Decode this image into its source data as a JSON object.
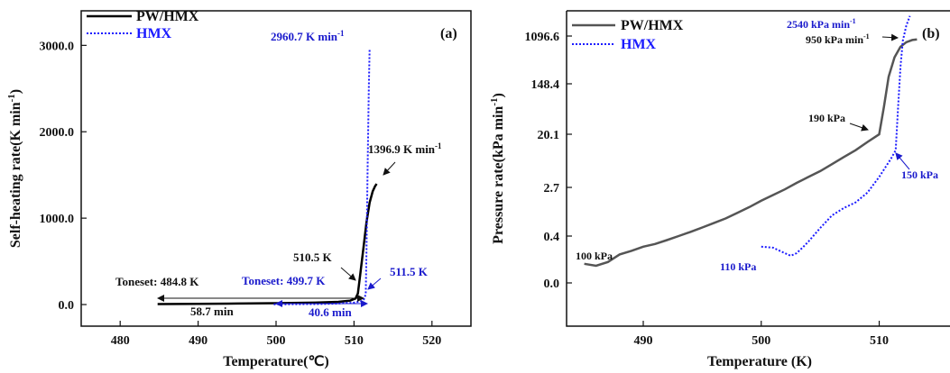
{
  "colors": {
    "pw_hmx": "#555555",
    "pw_hmx_a": "#000000",
    "hmx": "#1a1aff",
    "ann_black": "#111111",
    "ann_blue": "#1a1acc"
  },
  "chart_data": [
    {
      "panel_label": "(a)",
      "type": "line",
      "xlabel": "Temperature(℃)",
      "ylabel": "Self-heating rate(K min",
      "ylabel_sup": "-1",
      "ylabel_close": ")",
      "xlim": [
        475,
        525
      ],
      "ylim": [
        -250,
        3400
      ],
      "xticks": [
        480,
        490,
        500,
        510,
        520
      ],
      "yticks": [
        0,
        1000,
        2000,
        3000
      ],
      "ytick_labels": [
        "0.0",
        "1000.0",
        "2000.0",
        "3000.0"
      ],
      "legend": [
        "PW/HMX",
        "HMX"
      ],
      "series": [
        {
          "name": "PW/HMX",
          "style": "solid",
          "x": [
            484.8,
            490,
            495,
            500,
            505,
            508,
            509.5,
            510.2,
            510.5,
            510.8,
            511.2,
            511.6,
            512.0,
            512.4,
            512.7,
            512.9
          ],
          "y": [
            5,
            8,
            12,
            16,
            22,
            32,
            45,
            70,
            130,
            350,
            650,
            950,
            1180,
            1310,
            1370,
            1396.9
          ]
        },
        {
          "name": "HMX",
          "style": "dotted",
          "x": [
            499.7,
            503,
            506,
            508,
            510,
            511,
            511.3,
            511.5,
            511.6,
            511.75,
            511.9,
            512.0
          ],
          "y": [
            2,
            4,
            7,
            12,
            22,
            40,
            65,
            120,
            600,
            1600,
            2500,
            2960.7
          ]
        }
      ],
      "annotations": {
        "hmx_peak": {
          "text": "2960.7 K min",
          "sup": "-1"
        },
        "pw_peak": {
          "text": "1396.9 K min",
          "sup": "-1"
        },
        "pw_onset_end": "510.5 K",
        "hmx_onset_end": "511.5 K",
        "pw_onset": "Toneset: 484.8 K",
        "hmx_onset": "Toneset: 499.7 K",
        "pw_duration": "58.7 min",
        "hmx_duration": "40.6 min"
      }
    },
    {
      "panel_label": "(b)",
      "type": "line",
      "xlabel": "Temperature (K)",
      "ylabel": "Pressure rate(kPa min",
      "ylabel_sup": "-1",
      "ylabel_close": ")",
      "xlim": [
        483.5,
        516
      ],
      "yscale": "log",
      "yticks": [
        0.0,
        0.4,
        2.7,
        20.1,
        148.4,
        1096.6
      ],
      "ytick_labels": [
        "0.0",
        "0.4",
        "2.7",
        "20.1",
        "148.4",
        "1096.6"
      ],
      "xticks": [
        490,
        500,
        510
      ],
      "legend": [
        "PW/HMX",
        "HMX"
      ],
      "series": [
        {
          "name": "PW/HMX",
          "style": "solid",
          "x": [
            485.0,
            486.0,
            487.0,
            488.0,
            489.0,
            490.0,
            491.0,
            492.0,
            493.0,
            494.0,
            495.0,
            496.0,
            497.0,
            498.0,
            499.0,
            500.0,
            501.0,
            502.0,
            503.0,
            504.0,
            505.0,
            506.0,
            507.0,
            508.0,
            509.0,
            510.0,
            510.4,
            510.8,
            511.3,
            511.8,
            512.3,
            512.8,
            513.2
          ],
          "y": [
            0.13,
            0.12,
            0.14,
            0.19,
            0.22,
            0.26,
            0.29,
            0.34,
            0.4,
            0.47,
            0.56,
            0.67,
            0.8,
            1.0,
            1.25,
            1.6,
            2.0,
            2.5,
            3.2,
            4.0,
            5.0,
            6.5,
            8.5,
            11,
            15,
            20,
            60,
            200,
            450,
            700,
            850,
            930,
            950
          ]
        },
        {
          "name": "HMX",
          "style": "dotted",
          "x": [
            500.0,
            501.0,
            502.0,
            502.5,
            503.0,
            503.5,
            504.0,
            505.0,
            506.0,
            507.0,
            508.0,
            509.0,
            510.0,
            511.0,
            511.4,
            511.6,
            511.8,
            512.0,
            512.3,
            512.6
          ],
          "y": [
            0.26,
            0.25,
            0.2,
            0.18,
            0.2,
            0.25,
            0.32,
            0.55,
            0.9,
            1.2,
            1.5,
            2.2,
            4.0,
            8.0,
            11,
            60,
            300,
            900,
            1700,
            2540
          ]
        }
      ],
      "annotations": {
        "hmx_peak": {
          "text": "2540 kPa min",
          "sup": "-1"
        },
        "pw_peak": {
          "text": "950 kPa min",
          "sup": "-1"
        },
        "pw_knee": "190 kPa",
        "hmx_knee": "150 kPa",
        "pw_start": "100 kPa",
        "hmx_start": "110 kPa"
      }
    }
  ]
}
